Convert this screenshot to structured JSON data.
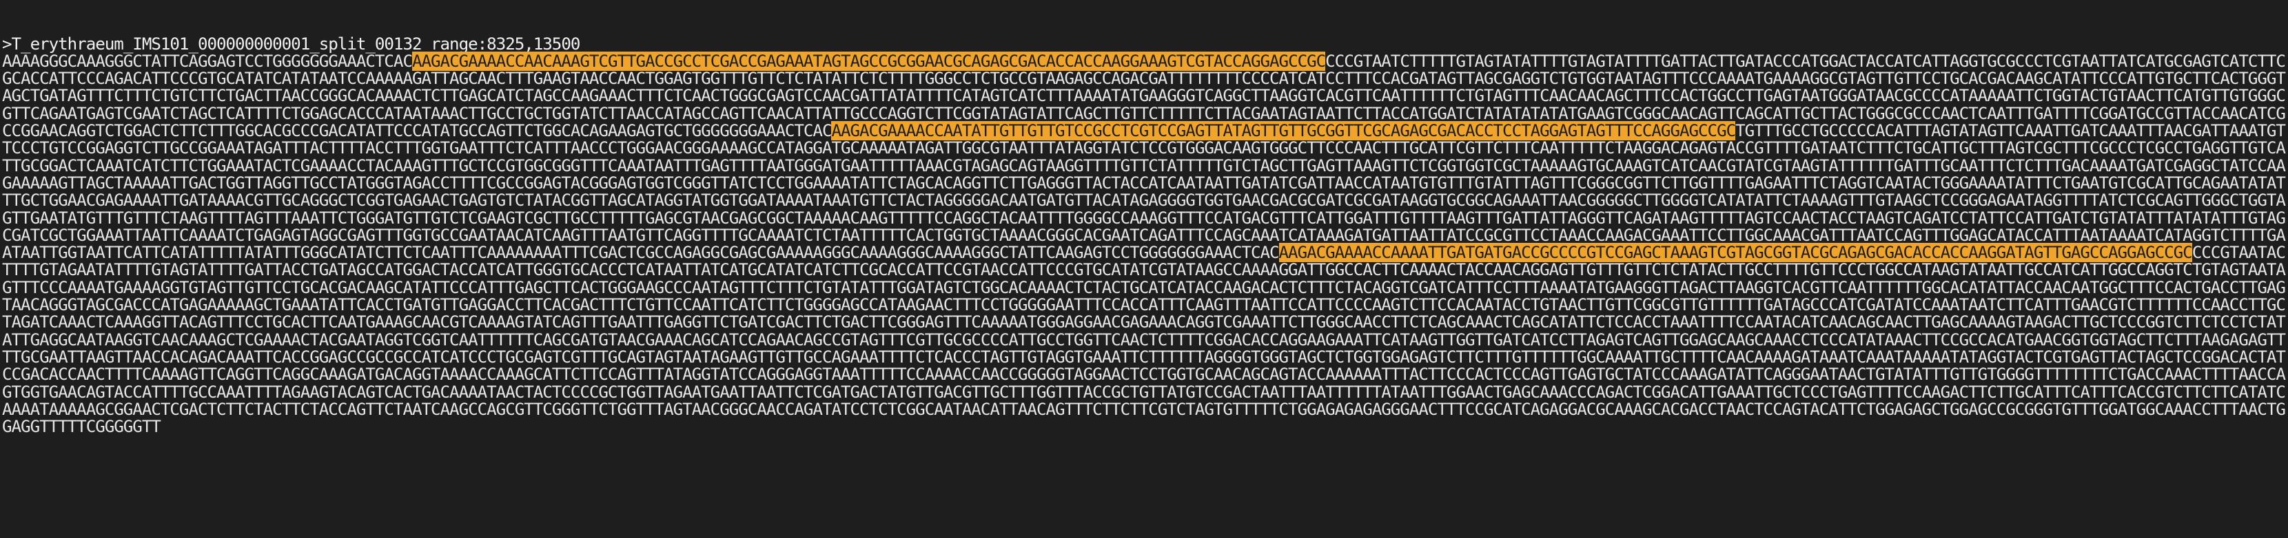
{
  "header": ">T_erythraeum_IMS101_000000000001_split_00132 range:8325,13500",
  "colors": {
    "background": "#1e1e1e",
    "text": "#e6e6e6",
    "highlight": "#f0a52a",
    "highlight_text": "#1e1e1e"
  },
  "segments": [
    {
      "type": "plain",
      "text": "AAAAGGGCAAAGGGCTATTCAGGAGTCCTGGGGGGGAAACTCAC"
    },
    {
      "type": "highlight",
      "text": "AAGACGAAAACCAACAAAGTCGTTGACCGCCTCGACCGAGAAATAGTAGCCGCGGAACGCAGAGCGACACCACCAAGGAAAGTCGTACCAGGAGCCGC"
    },
    {
      "type": "plain",
      "text": "CCCGTAATCTTTTTGTAGTATATTTTGTAGTATTTTGATTACTTGATACCCATGGACTACCATCATTAGGTGCGCCCTCGTAATTATCATGCGAGTCATCTTCGCACCATTCCCAGACATTCCCGTGCATATCATATAATCCAAAAAGATTAGCAACTTTGAAGTAACCAACTGGAGTGGTTTGTTCTCTATATTCTCTTTTGGGCCTCTGCCGTAAGAGCCAGACGATTTTTTTTCCCCATCATCCTTTCCACGATAGTTAGCGAGGTCTGTGGTAATAGTTTCCCAAAATGAAAAGGCGTAGTTGTTCCTGCACGACAAGCATATTCCCATTGTGCTTCACTGGGTAGCTGATAGTTTCTTTCTGTCTTCTGACTTAACCGGGCACAAAACTCTTGAGCATCTAGCCAAGAAACTTTCTCAACTGGGCGAGTCCAACGATTATATTTTCATAGTCATCTTTAAAATATGAAGGGTCAGGCTTAAGGTCACGTTCAATTTTTTCTGTAGTTTCAACAACAGCTTTCCACTGGCCTTGAGTAATGGGATAACGCCCCATAAAAATTCTGGTACTGTAACTTCATGTTGTGGGCGTTCAGAATGAGTCGAATCTAGCTCATTTTCTGGAGCACCCATAATAAACTTGCCTGCTGGTATCTTAACCATAGCCAGTTCAACATTATTGCCCAGGTCTTCGGTATAGTATTCAGCTTGTTCTTTTTCTTACGAATAGTAATTCTTACCATGGATCTATATATATATGAAGTCGGGCAACAGTTCAGCATTGCTTACTGGGCGCCCAACTCAATTTGATTTTCGGATGCCGTTACCAACATCGCCGGAACAGGTCTGGACTCTTCTTTGGCACGCCCGACATATTCCCATATGCCAGTTCTGGCACAGAAGAGTGCTGGGGGGGAAACTCAC"
    },
    {
      "type": "highlight",
      "text": "AAGACGAAAACCAATATTGTTGTTGTCCGCCTCGTCCGAGTTATAGTTGTTGCGGTTCGCAGAGCGACACCTCCTAGGAGTAGTTTCCAGGAGCCGC"
    },
    {
      "type": "plain",
      "text": "TGTTTGCCTGCCCCCACATTTAGTATAGTTCAAATTGATCAAATTTAACGATTAAATGTTCCCTGTCCGGAGGTCTTGCCGGAAATAGATTTACTTTTACCTTTGGTGAATTTCTCATTTAACCCTGGGAACGGGAAAAGCCATAGGATGCAAAAATAGATTGGCGTAATTTATAGGTATCTCCGTGGGACAAGTGGGCTTCCCAACTTTGCATTCGTTCTTTCAATTTTTCTAAGGACAGAGTACCGTTTTGATAATCTTTCTGCATTGCTTTAGTCGCTTTCGCCCTCGCCTGAGGTTGTCATTGCGGACTCAAATCATCTTCTGGAAATACTCGAAAACCTACAAAGTTTGCTCCGTGGCGGGTTTCAAATAATTTGAGTTTTAATGGGATGAATTTTTAAACGTAGAGCAGTAAGGTTTTGTTCTATTTTTGTCTAGCTTGAGTTAAAGTTCTCGGTGGTCGCTAAAAAGTGCAAAGTCATCAACGTATCGTAAGTATTTTTTGATTTGCAATTTCTCTTTGACAAAATGATCGAGGCTATCCAAGAAAAAGTTAGCTAAAAATTGACTGGTTAGGTTGCCTATGGGTAGACCTTTTCGCCGGAGTACGGGAGTGGTCGGGTTATCTCCTGGAAAATATTCTAGCACAGGTTCTTGAGGGTTACTACCATCAATAATTGATATCGATTAACCATAATGTGTTTGTATTTAGTTTCGGGCGGTTCTTGGTTTTGAGAATTTCTAGGTCAATACTGGGAAAATATTTCTGAATGTCGCATTGCAGAATATATTTGCTGGAACGAGAAAATTGATAAAACGTTGCAGGGCTCGGTGAGAACTGAGTGTCTATACGGTTAGCATAGGTATGGTGGATAAAATAAATGTTCTACTAGGGGGACAATGATGTTACATAGAGGGGTGGTGAACGACGCGATCGCGATAAGGTGCGGCAGAAATTAACGGGGGCTTGGGGTCATATATTCTAAAAGTTTGTAAGCTCCGGGAGAATAGGTTTTATCTCGCAGTTGGGCTGGTAGTTGAATATGTTTGTTTCTAAGTTTTAGTTTAAATTCTGGGATGTTGTCTCGAAGTCGCTTGCCTTTTTGAGCGTAACGAGCGGCTAAAAACAAGTTTTTCCAGGCTACAATTTTGGGGCCAAAGGTTTCCATGACGTTTCATTGGATTTGTTTTAAGTTTGATTATTAGGGTTCAGATAAGTTTTTAGTCCAACTACCTAAGTCAGATCCTATTCCATTGATCTGTATATTTATATATTTGTAGCGATCGCTGGAAATTAATTCAAAATCTGAGAGTAGGCGAGTTTGGTGCCGAATAACATCAAGTTTAATGTTCAGGTTTTGCAAAATCTCTAATTTTTCACTGGTGCTAAAACGGGCACGAATCAGATTTCCAGCAAATCATAAAGATGATTAATTATCCGCGTTCCTAAACCAAGACGAAATTCCTTGGCAAACGATTTAATCCAGTTTGGAGCATACCATTTAATAAAATCATAGGTCTTTTGAATAATTGGTAATTCATTCATATTTTTATATTTGGGCATATCTTCTCAATTTCAAAAAAAATTTCGACTCGCCAGAGGCGAGCGAAAAAGGGCAAAAGGGCAAAAGGGCTATTCAAGAGTCCTGGGGGGGAAACTCAC"
    },
    {
      "type": "highlight",
      "text": "AAGACGAAAACCAAAATTGATGATGACCGCCCCGTCCGAGCTAAAGTCGTAGCGGTACGCAGAGCGACACCACCAAGGATAGTTGAGCCAGGAGCCGC"
    },
    {
      "type": "plain",
      "text": "CCCGTAATACTTTTGTAGAATATTTTGTAGTATTTTGATTACCTGATAGCCATGGACTACCATCATTGGGTGCACCCTCATAATTATCATGCATATCATCTTCGCACCATTCCGTAACCATTCCCGTGCATATCGTATAAGCCAAAAGGATTGGCCACTTCAAAACTACCAACAGGAGTTGTTTGTTCTCTATACTTGCCTTTTGTTCCCTGGCCATAAGTATAATTGCCATCATTGGCCAGGTCTGTAGTAATAGTTTCCCAAAATGAAAAGGTGTAGTTGTTCCTGCACGACAAGCATATTCCCATTTGAGCTTCACTGGGAAGCCCAATAGTTTCTTTCTGTATATTTGGATAGTCTGGCACAAAACTCTACTGCATCATACCAAGACACTCTTTCTACAGGTCGATCATTTCCTTTAAAATATGAAGGGTTAGACTTAAGGTCACGTTCAATTTTTTGGCACATATTACCAACAATGGCTTTCCACTGACCTTGAGTAACAGGGTAGCGACCCATGAGAAAAAGCTGAAATATTCACCTGATGTTGAGGACCTTCACGACTTTCTGTTCCAATTCATCTTCTGGGGAGCCATAAGAACTTTCCTGGGGGAATTTCCACCATTTCAAGTTTAATTCCATTCCCCAAGTCTTCCACAATACCTGTAACTTGTTCGGCGTTGTTTTTTGATAGCCCATCGATATCCAAATAATCTTCATTTGAACGTCTTTTTTCCAACCTTGCTAGATCAAACTCAAAGGTTACAGTTTCCTGCACTTCAATGAAAGCAACGTCAAAAGTATCAGTTTGAATTTGAGGTTCTGATCGACTTCTGACTTCGGGAGTTTCAAAAATGGGAGGAACGAGAAACAGGTCGAAATTCTTGGGCAACCTTCTCAGCAAACTCAGCATATTCTCCACCTAAATTTTCCAATACATCAACAGCAACTTGAGCAAAAGTAAGACTTGCTCCCGGTCTTCTCCTCTATATTGAGGCAATAAGGTCAACAAAGCTCGAAAACTACGAATAGGTCGGTCAATTTTTTCAGCGATGTAACGAAACAGCATCCAGAACAGCCGTAGTTTCGTTGCGCCCCATTGCCTGGTTCAACTCTTTTCGGACACCAGGAAGAAATTCATAAGTTGGTTGATCATCCTTAGAGTCAGTTGGAGCAAGCAAACCTCCCATATAAACTTCCGCCACATGAACGGTGGTAGCTTCTTTAAGAGAGTTTTGCGAATTAAGTTAACCACAGACAAATTCACCGGAGCCGCCGCCATCATCCCTGCGAGTCGTTTGCAGTAGTAATAGAAGTTGTTGCCAGAAATTTTCTCACCCTAGTTGTAGGTGAAATTCTTTTTTAGGGGTGGGTAGCTCTGGTGGAGAGTCTTCTTTGTTTTTTGGCAAAATTGCTTTTCAACAAAAGATAAATCAAATAAAAATATAGGTACTCGTGAGTTACTAGCTCCGGACACTATCCGACACCAACTTTTCAAAAGTTCAGGTTCAGGCAAAGATGACAGGTAAAACCAAAGCATTCTTCCAGTTTATAGGTATCCAGGGAGGTAAATTTTTCCAAAACCAACCGGGGGTAGGAACTCCTGGTGCAACAGCAGTACCAAAAAATTTACTTCCCACTCCCAGTTGAGTGCTATCCCAAAGATATTCAGGGAATAACTGTATATTTGTTGTGGGGTTTTTTTTCTGACCAAACTTTTAACCAGTGGTGAACAGTACCATTTTGCCAAATTTTAGAAGTACAGTCACTGACAAAATAACTACTCCCCGCTGGTTAGAATGAATTAATTCTCGATGACTATGTTGACGTTGCTTTGGTTTACCGCTGTTATGTCCGACTAATTTAATTTTTTATAATTTGGAACTGAGCAAACCCAGACTCGGACATTGAAATTGCTCCCTGAGTTTTCCAAGACTTCTTGCATTTCATTTCACCGTCTTCTTCATATCAAAATAAAAAGCGGAACTCGACTCTTCTACTTCTACCAGTTCTAATCAAGCCAGCGTTCGGGTTCTGGTTTAGTAACGGGCAACCAGATATCCTCTCGGCAATAACATTAACAGTTTCTTCTTCGTCTAGTGTTTTTCTGGAGAGAGAGGGAACTTTCCGCATCAGAGGACGCAAAGCACGACCTAACTCCAGTACATTCTGGAGAGCTGGAGCCGCGGGTGTTTGGATGGCAAACCTTTAACTGGAGGTTTTTCGGGGGTT"
    }
  ]
}
